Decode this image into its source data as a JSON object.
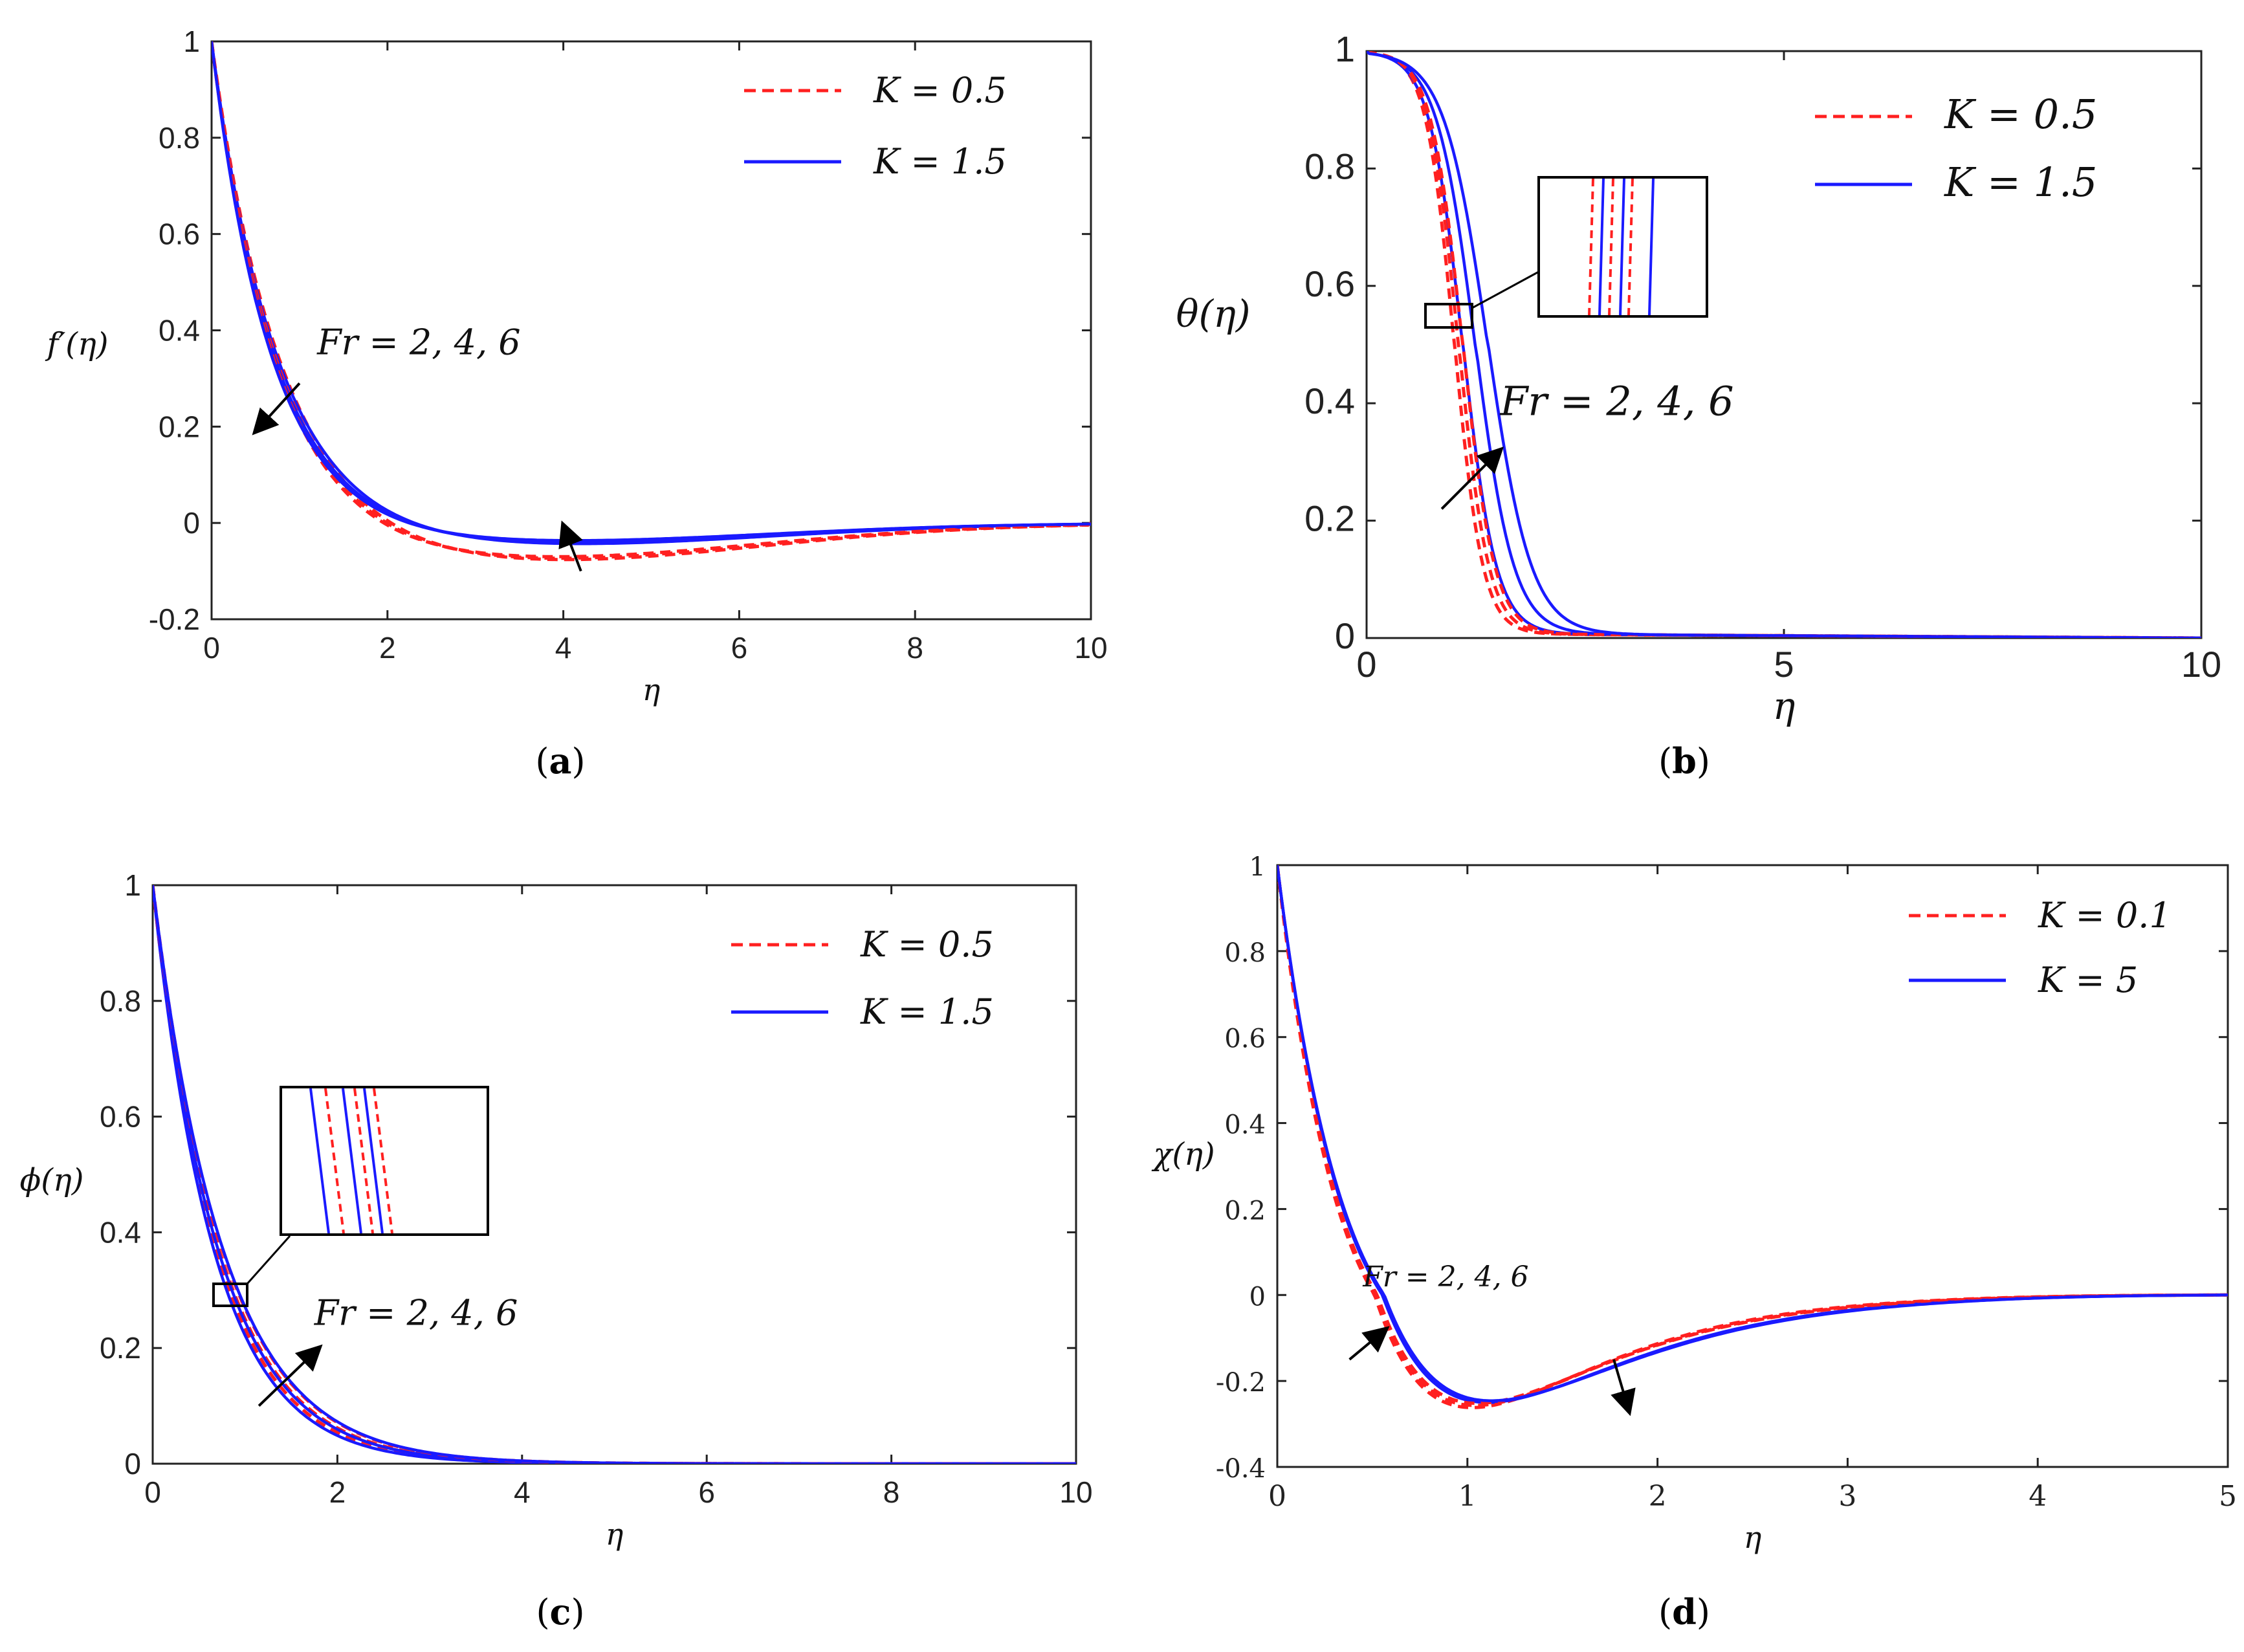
{
  "chart_data": [
    {
      "panel": "a",
      "type": "line",
      "caption": "(a)",
      "xlabel": "η",
      "ylabel": "f′(η)",
      "xlim": [
        0,
        10
      ],
      "ylim": [
        -0.2,
        1
      ],
      "xticks": [
        0,
        2,
        4,
        6,
        8,
        10
      ],
      "yticks": [
        -0.2,
        0,
        0.2,
        0.4,
        0.6,
        0.8,
        1
      ],
      "xtick_labels": [
        "0",
        "2",
        "4",
        "6",
        "8",
        "10"
      ],
      "ytick_labels": [
        "-0.2",
        "0",
        "0.2",
        "0.4",
        "0.6",
        "0.8",
        "1"
      ],
      "legend": [
        {
          "label": "K = 0.5",
          "style": "dashed",
          "color": "#ff2020"
        },
        {
          "label": "K = 1.5",
          "style": "solid",
          "color": "#1a1aff"
        }
      ],
      "annotations": [
        {
          "text": "Fr = 2, 4, 6",
          "at": [
            1.2,
            0.35
          ]
        },
        {
          "arrow_from": [
            1.0,
            0.29
          ],
          "arrow_to": [
            0.5,
            0.19
          ]
        },
        {
          "arrow_from": [
            4.2,
            -0.1
          ],
          "arrow_to": [
            4.0,
            -0.005
          ]
        }
      ],
      "params": {
        "decay": [
          1.35,
          1.42,
          1.48
        ],
        "dip_depth": [
          0.082,
          0.078,
          0.074
        ],
        "dip_scale": 0.55,
        "dip_decay": 0.28
      }
    },
    {
      "panel": "b",
      "type": "line",
      "caption": "(b)",
      "xlabel": "η",
      "ylabel": "θ(η)",
      "xlim": [
        0,
        10
      ],
      "ylim": [
        0,
        1
      ],
      "xticks": [
        0,
        5,
        10
      ],
      "yticks": [
        0,
        0.2,
        0.4,
        0.6,
        0.8,
        1
      ],
      "xtick_labels": [
        "0",
        "5",
        "10"
      ],
      "ytick_labels": [
        "0",
        "0.2",
        "0.4",
        "0.6",
        "0.8",
        "1"
      ],
      "legend": [
        {
          "label": "K = 0.5",
          "style": "dashed",
          "color": "#ff2020"
        },
        {
          "label": "K = 1.5",
          "style": "solid",
          "color": "#1a1aff"
        }
      ],
      "annotations": [
        {
          "text": "Fr = 2, 4, 6",
          "at": [
            1.6,
            0.38
          ]
        },
        {
          "arrow_from": [
            0.9,
            0.22
          ],
          "arrow_to": [
            1.6,
            0.32
          ]
        }
      ],
      "params": {
        "center_red": [
          1.05,
          1.1,
          1.15
        ],
        "center_blue": [
          1.15,
          1.3,
          1.45
        ],
        "width_red": [
          0.17,
          0.18,
          0.19
        ],
        "width_blue": [
          0.2,
          0.23,
          0.26
        ]
      }
    },
    {
      "panel": "c",
      "type": "line",
      "caption": "(c)",
      "xlabel": "η",
      "ylabel": "ϕ(η)",
      "xlim": [
        0,
        10
      ],
      "ylim": [
        0,
        1
      ],
      "xticks": [
        0,
        2,
        4,
        6,
        8,
        10
      ],
      "yticks": [
        0,
        0.2,
        0.4,
        0.6,
        0.8,
        1
      ],
      "xtick_labels": [
        "0",
        "2",
        "4",
        "6",
        "8",
        "10"
      ],
      "ytick_labels": [
        "0",
        "0.2",
        "0.4",
        "0.6",
        "0.8",
        "1"
      ],
      "legend": [
        {
          "label": "K = 0.5",
          "style": "dashed",
          "color": "#ff2020"
        },
        {
          "label": "K = 1.5",
          "style": "solid",
          "color": "#1a1aff"
        }
      ],
      "annotations": [
        {
          "text": "Fr = 2, 4, 6",
          "at": [
            1.75,
            0.24
          ]
        },
        {
          "arrow_from": [
            1.15,
            0.1
          ],
          "arrow_to": [
            1.8,
            0.2
          ]
        }
      ],
      "params": {
        "decay_red": [
          1.35,
          1.28,
          1.21
        ],
        "decay_blue": [
          1.4,
          1.3,
          1.2
        ]
      }
    },
    {
      "panel": "d",
      "type": "line",
      "caption": "(d)",
      "xlabel": "η",
      "ylabel": "χ(η)",
      "xlim": [
        0,
        5
      ],
      "ylim": [
        -0.4,
        1
      ],
      "xticks": [
        0,
        1,
        2,
        3,
        4,
        5
      ],
      "yticks": [
        -0.4,
        -0.2,
        0,
        0.2,
        0.4,
        0.6,
        0.8,
        1
      ],
      "xtick_labels": [
        "0",
        "1",
        "2",
        "3",
        "4",
        "5"
      ],
      "ytick_labels": [
        "-0.4",
        "-0.2",
        "0",
        "0.2",
        "0.4",
        "0.6",
        "0.8",
        "1"
      ],
      "legend": [
        {
          "label": "K = 0.1",
          "style": "dashed",
          "color": "#ff2020"
        },
        {
          "label": "K = 5",
          "style": "solid",
          "color": "#1a1aff"
        }
      ],
      "annotations": [
        {
          "text": "Fr = 2, 4, 6",
          "at": [
            0.45,
            0.02
          ]
        },
        {
          "arrow_from": [
            0.38,
            -0.15
          ],
          "arrow_to": [
            0.57,
            -0.08
          ]
        },
        {
          "arrow_from": [
            1.77,
            -0.15
          ],
          "arrow_to": [
            1.85,
            -0.27
          ]
        }
      ],
      "params": {
        "min_red": [
          -0.262,
          -0.257,
          -0.252
        ],
        "min_blue": [
          -0.25,
          -0.248,
          -0.246
        ],
        "eta_min_red": [
          0.95,
          0.98,
          1.0
        ],
        "eta_min_blue": [
          1.1,
          1.12,
          1.14
        ]
      }
    }
  ],
  "captions": {
    "a": "(a)",
    "b": "(b)",
    "c": "(c)",
    "d": "(d)"
  }
}
